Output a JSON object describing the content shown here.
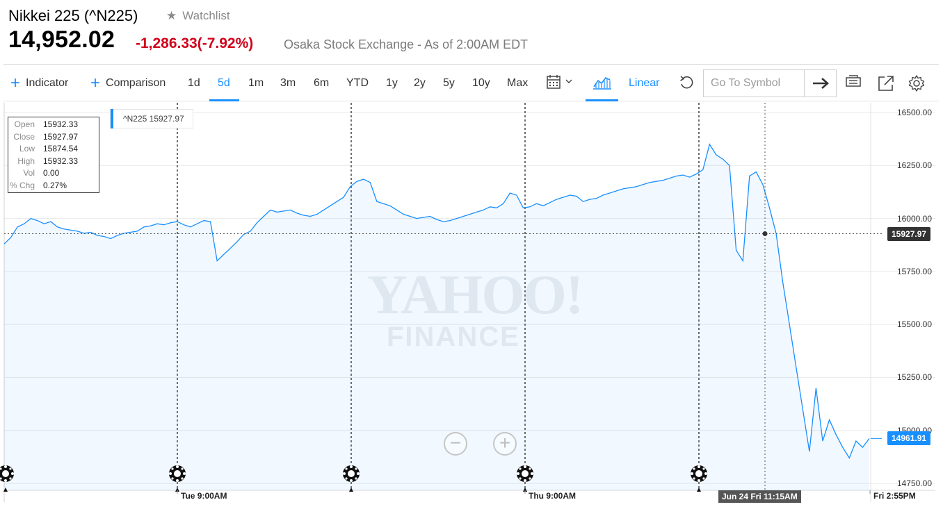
{
  "header": {
    "title": "Nikkei 225 (^N225)",
    "watchlist": "Watchlist",
    "price": "14,952.02",
    "change": "-1,286.33",
    "change_pct": "(-7.92%)",
    "exchange": "Osaka Stock Exchange - As of 2:00AM EDT"
  },
  "toolbar": {
    "indicator": "Indicator",
    "comparison": "Comparison",
    "ranges": [
      "1d",
      "5d",
      "1m",
      "3m",
      "6m",
      "YTD",
      "1y",
      "2y",
      "5y",
      "10y",
      "Max"
    ],
    "active_range": "5d",
    "scale": "Linear",
    "goto_placeholder": "Go To Symbol",
    "accent": "#188fff"
  },
  "tooltip": {
    "open_label": "Open",
    "open": "15932.33",
    "close_label": "Close",
    "close": "15927.97",
    "low_label": "Low",
    "low": "15874.54",
    "high_label": "High",
    "high": "15932.33",
    "vol_label": "Vol",
    "vol": "0.00",
    "pct_label": "% Chg",
    "pct": "0.27%"
  },
  "legend": {
    "text": "^N225 15927.97"
  },
  "watermark": {
    "line1": "YAHOO!",
    "line2": "FINANCE"
  },
  "chart_data": {
    "type": "area",
    "y_ticks": [
      "16500.00",
      "16250.00",
      "16000.00",
      "15750.00",
      "15500.00",
      "15250.00",
      "15000.00",
      "14750.00"
    ],
    "ylim": [
      14750,
      16500
    ],
    "x_labels": [
      "Tue 9:00AM",
      "Thu 9:00AM",
      "Jun 24 Fri 11:15AM",
      "Fri 2:55PM"
    ],
    "crosshair_value": "15927.97",
    "last_value": "14961.91",
    "line_color": "#188fff",
    "series": [
      {
        "values": [
          15880,
          15910,
          15960,
          15975,
          16000,
          15990,
          15975,
          15985,
          15960,
          15950,
          15945,
          15940,
          15930,
          15935,
          15920,
          15915,
          15905,
          15920,
          15930,
          15935,
          15940,
          15960,
          15965,
          15975,
          15970,
          15980,
          15985,
          15970,
          15960,
          15975,
          15990,
          15985,
          15800,
          15830,
          15860,
          15890,
          15925,
          15940,
          15980,
          16010,
          16040,
          16030,
          16035,
          16040,
          16025,
          16015,
          16010,
          16020,
          16040,
          16060,
          16080,
          16100,
          16150,
          16175,
          16185,
          16170,
          16080,
          16070,
          16060,
          16040,
          16020,
          16010,
          16000,
          16005,
          16010,
          15995,
          15985,
          15990,
          16000,
          16010,
          16020,
          16030,
          16040,
          16055,
          16050,
          16070,
          16120,
          16110,
          16050,
          16055,
          16070,
          16060,
          16075,
          16090,
          16100,
          16110,
          16105,
          16080,
          16090,
          16095,
          16110,
          16120,
          16130,
          16140,
          16145,
          16150,
          16160,
          16170,
          16175,
          16180,
          16190,
          16200,
          16205,
          16195,
          16210,
          16230,
          16350,
          16300,
          16280,
          16250,
          15850,
          15800,
          16200,
          16220,
          16160,
          16050,
          15930,
          15700,
          15500,
          15300,
          15100,
          14900,
          15200,
          14950,
          15050,
          14980,
          14920,
          14870,
          14950,
          14920,
          14961.91
        ]
      }
    ]
  }
}
